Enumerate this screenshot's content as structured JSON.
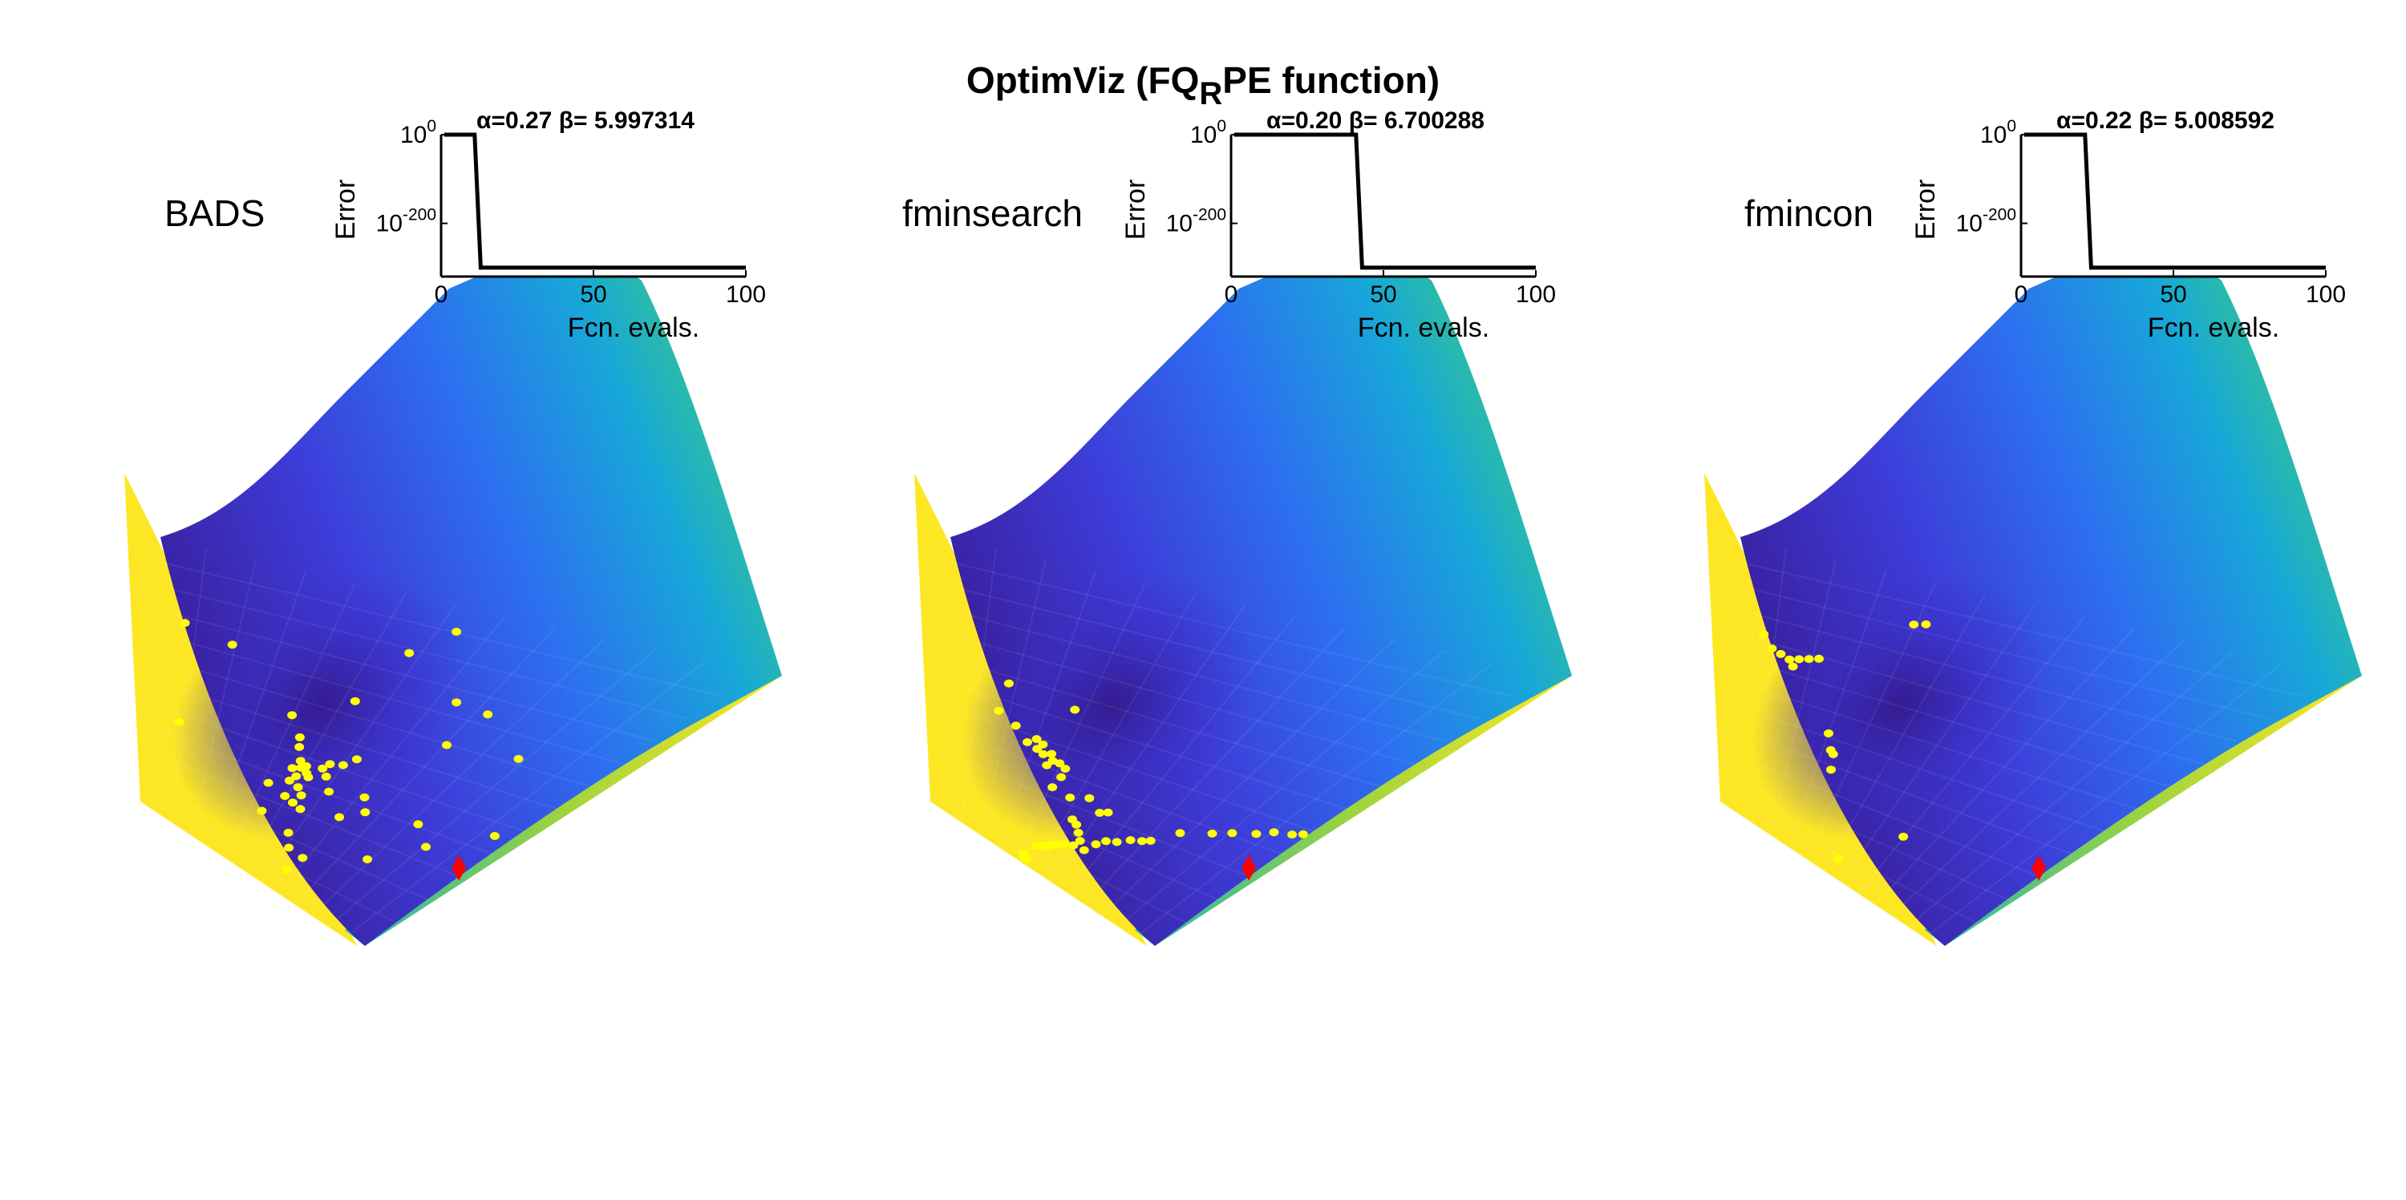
{
  "figure": {
    "title": "OptimViz (FQ",
    "title_sub": "R",
    "title_tail": "PE function)",
    "background": "#ffffff"
  },
  "colors": {
    "surface_low": "#3b1f9e",
    "surface_mid": "#1aa6d4",
    "surface_high": "#fde724",
    "samples": "#ffff00",
    "optimum_marker": "#ff0000",
    "trace": "#000000"
  },
  "chart_data": [
    {
      "type": "line",
      "panel_label": "BADS",
      "title_alpha": "α=0.27",
      "title_beta": "β= 5.997314",
      "xlabel": "Fcn. evals.",
      "ylabel": "Error",
      "xlim": [
        0,
        100
      ],
      "xticks": [
        "0",
        "50",
        "100"
      ],
      "yscale": "log",
      "yticks": [
        {
          "base": "10",
          "exp": "0"
        },
        {
          "base": "10",
          "exp": "-200"
        }
      ],
      "series": [
        {
          "x": [
            1,
            11,
            13,
            100
          ],
          "y_exp": [
            0,
            0,
            -300,
            -300
          ]
        }
      ],
      "surface_samples": [
        [
          0.53,
          0.08
        ],
        [
          0.48,
          0.18
        ],
        [
          0.62,
          0.29
        ],
        [
          0.69,
          0.3
        ],
        [
          0.82,
          0.4
        ],
        [
          0.16,
          0.3
        ],
        [
          0.44,
          0.37
        ],
        [
          0.67,
          0.42
        ],
        [
          0.33,
          0.47
        ],
        [
          0.37,
          0.53
        ],
        [
          0.52,
          0.54
        ],
        [
          0.38,
          0.56
        ],
        [
          0.4,
          0.6
        ],
        [
          0.41,
          0.62
        ],
        [
          0.42,
          0.61
        ],
        [
          0.43,
          0.63
        ],
        [
          0.39,
          0.63
        ],
        [
          0.41,
          0.65
        ],
        [
          0.44,
          0.64
        ],
        [
          0.46,
          0.6
        ],
        [
          0.47,
          0.58
        ],
        [
          0.5,
          0.57
        ],
        [
          0.48,
          0.62
        ],
        [
          0.4,
          0.67
        ],
        [
          0.43,
          0.68
        ],
        [
          0.45,
          0.7
        ],
        [
          0.41,
          0.72
        ],
        [
          0.44,
          0.73
        ],
        [
          0.47,
          0.74
        ],
        [
          0.35,
          0.7
        ],
        [
          0.6,
          0.64
        ],
        [
          0.63,
          0.68
        ],
        [
          0.58,
          0.72
        ],
        [
          0.51,
          0.66
        ],
        [
          0.77,
          0.66
        ],
        [
          0.84,
          0.71
        ],
        [
          0.74,
          0.8
        ],
        [
          0.48,
          0.82
        ],
        [
          0.51,
          0.86
        ],
        [
          0.57,
          0.87
        ],
        [
          0.55,
          0.92
        ],
        [
          0.37,
          0.79
        ],
        [
          0.95,
          0.62
        ],
        [
          0.06,
          0.27
        ],
        [
          0.07,
          0.61
        ]
      ],
      "optimum": [
        0.965,
        0.73
      ]
    },
    {
      "type": "line",
      "panel_label": "fminsearch",
      "title_alpha": "α=0.20",
      "title_beta": "β= 6.700288",
      "xlabel": "Fcn. evals.",
      "ylabel": "Error",
      "xlim": [
        0,
        100
      ],
      "xticks": [
        "0",
        "50",
        "100"
      ],
      "yscale": "log",
      "yticks": [
        {
          "base": "10",
          "exp": "0"
        },
        {
          "base": "10",
          "exp": "-200"
        }
      ],
      "series": [
        {
          "x": [
            1,
            41,
            43,
            100
          ],
          "y_exp": [
            0,
            0,
            -300,
            -300
          ]
        }
      ],
      "surface_samples": [
        [
          0.15,
          0.44
        ],
        [
          0.31,
          0.46
        ],
        [
          0.14,
          0.54
        ],
        [
          0.19,
          0.57
        ],
        [
          0.25,
          0.59
        ],
        [
          0.27,
          0.6
        ],
        [
          0.23,
          0.61
        ],
        [
          0.26,
          0.62
        ],
        [
          0.28,
          0.63
        ],
        [
          0.3,
          0.62
        ],
        [
          0.31,
          0.64
        ],
        [
          0.33,
          0.64
        ],
        [
          0.35,
          0.65
        ],
        [
          0.3,
          0.66
        ],
        [
          0.35,
          0.68
        ],
        [
          0.4,
          0.73
        ],
        [
          0.45,
          0.71
        ],
        [
          0.5,
          0.74
        ],
        [
          0.52,
          0.73
        ],
        [
          0.44,
          0.79
        ],
        [
          0.46,
          0.8
        ],
        [
          0.48,
          0.82
        ],
        [
          0.5,
          0.84
        ],
        [
          0.53,
          0.86
        ],
        [
          0.49,
          0.86
        ],
        [
          0.46,
          0.87
        ],
        [
          0.44,
          0.88
        ],
        [
          0.42,
          0.89
        ],
        [
          0.4,
          0.9
        ],
        [
          0.38,
          0.91
        ],
        [
          0.41,
          0.9
        ],
        [
          0.55,
          0.83
        ],
        [
          0.57,
          0.81
        ],
        [
          0.6,
          0.8
        ],
        [
          0.63,
          0.78
        ],
        [
          0.66,
          0.77
        ],
        [
          0.68,
          0.76
        ],
        [
          0.73,
          0.71
        ],
        [
          0.8,
          0.68
        ],
        [
          0.84,
          0.66
        ],
        [
          0.89,
          0.64
        ],
        [
          0.92,
          0.62
        ],
        [
          0.96,
          0.61
        ],
        [
          0.98,
          0.6
        ],
        [
          0.34,
          0.72
        ],
        [
          0.35,
          0.95
        ],
        [
          0.37,
          0.96
        ],
        [
          0.36,
          0.96
        ]
      ],
      "optimum": [
        0.965,
        0.73
      ]
    },
    {
      "type": "line",
      "panel_label": "fmincon",
      "title_alpha": "α=0.22",
      "title_beta": "β= 5.008592",
      "xlabel": "Fcn. evals.",
      "ylabel": "Error",
      "xlim": [
        0,
        100
      ],
      "xticks": [
        "0",
        "50",
        "100"
      ],
      "yscale": "log",
      "yticks": [
        {
          "base": "10",
          "exp": "0"
        },
        {
          "base": "10",
          "exp": "-200"
        }
      ],
      "series": [
        {
          "x": [
            1,
            21,
            23,
            100
          ],
          "y_exp": [
            0,
            0,
            -300,
            -300
          ]
        }
      ],
      "surface_samples": [
        [
          0.33,
          0.15
        ],
        [
          0.35,
          0.14
        ],
        [
          0.06,
          0.31
        ],
        [
          0.08,
          0.35
        ],
        [
          0.1,
          0.36
        ],
        [
          0.12,
          0.37
        ],
        [
          0.14,
          0.36
        ],
        [
          0.16,
          0.35
        ],
        [
          0.18,
          0.34
        ],
        [
          0.13,
          0.39
        ],
        [
          0.25,
          0.57
        ],
        [
          0.27,
          0.62
        ],
        [
          0.28,
          0.63
        ],
        [
          0.29,
          0.68
        ],
        [
          0.58,
          0.79
        ],
        [
          0.44,
          0.93
        ]
      ],
      "optimum": [
        0.965,
        0.73
      ]
    }
  ]
}
